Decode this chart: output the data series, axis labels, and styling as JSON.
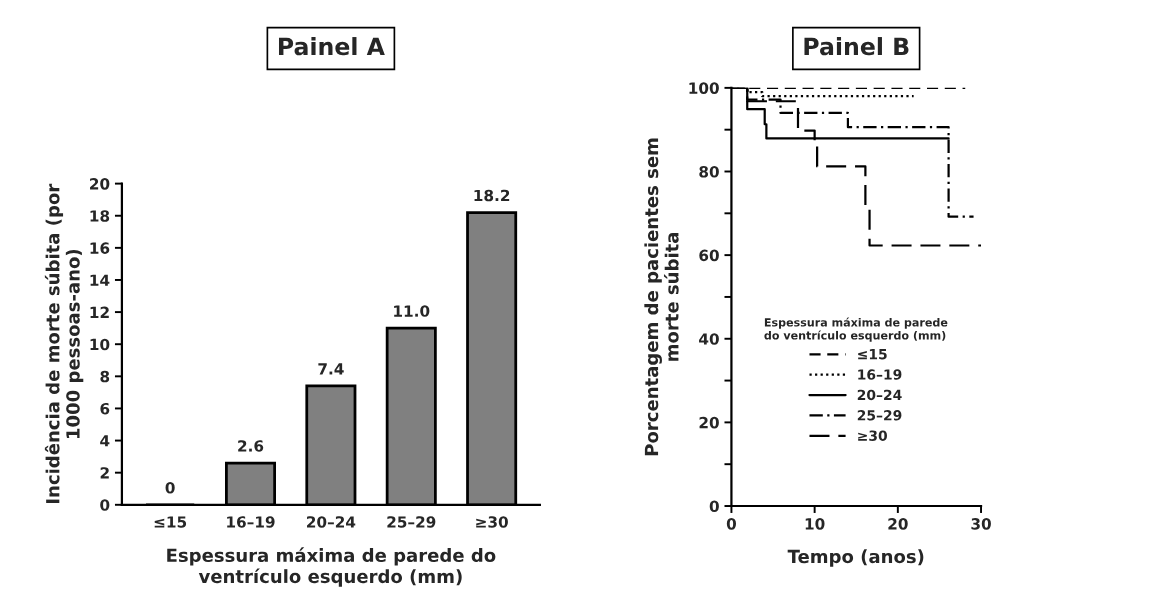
{
  "chart_data": [
    {
      "type": "bar",
      "title": "Painel A",
      "xlabel": "Espessura máxima de parede do\nventrículo esquerdo (mm)",
      "ylabel": "Incidência de morte súbita (por\n1000 pessoas-ano)",
      "categories": [
        "≤15",
        "16–19",
        "20–24",
        "25–29",
        "≥30"
      ],
      "values": [
        0,
        2.6,
        7.4,
        11.0,
        18.2
      ],
      "value_labels": [
        "0",
        "2.6",
        "7.4",
        "11.0",
        "18.2"
      ],
      "colors": [
        "#000000",
        "#808080",
        "#808080",
        "#808080",
        "#808080"
      ],
      "ylim": [
        0,
        20
      ],
      "yticks": [
        0,
        2,
        4,
        6,
        8,
        10,
        12,
        14,
        16,
        18,
        20
      ],
      "grid": false,
      "legend": false
    },
    {
      "type": "step",
      "title": "Painel B",
      "xlabel": "Tempo (anos)",
      "ylabel": "Porcentagem de pacientes sem\nmorte súbita",
      "legend_title": "Espessura máxima de parede\ndo ventrículo esquerdo (mm)",
      "xlim": [
        0,
        30
      ],
      "xticks": [
        0,
        10,
        20,
        30
      ],
      "ylim": [
        0,
        100
      ],
      "yticks": [
        0,
        {
          "value": 10,
          "label": null
        },
        20,
        {
          "value": 30,
          "label": null
        },
        40,
        {
          "value": 50,
          "label": null
        },
        60,
        {
          "value": 70,
          "label": null
        },
        80,
        {
          "value": 90,
          "label": null
        },
        100
      ],
      "grid": false,
      "legend": "left",
      "marker": "none",
      "series": [
        {
          "name": "≤15",
          "color": "#000000",
          "line_style": "dashed",
          "x": [
            0,
            28.1
          ],
          "values": [
            100,
            100
          ]
        },
        {
          "name": "16–19",
          "color": "#000000",
          "line_style": "dotted",
          "x": [
            0,
            1.9,
            3.7,
            21.9
          ],
          "values": [
            100,
            99,
            98,
            98
          ]
        },
        {
          "name": "20–24",
          "color": "#000000",
          "line_style": "solid",
          "x": [
            0,
            1.9,
            4.0,
            4.2,
            26.1
          ],
          "values": [
            100,
            94.9,
            91.3,
            87.9,
            87.9
          ]
        },
        {
          "name": "25–29",
          "color": "#000000",
          "line_style": "dashdot",
          "x": [
            0,
            1.9,
            5.9,
            14.0,
            26.1,
            29.1
          ],
          "values": [
            100,
            97.2,
            94.0,
            90.6,
            69.2,
            69.2
          ]
        },
        {
          "name": "≥30",
          "color": "#000000",
          "line_style": "longdash",
          "x": [
            0,
            1.9,
            8.0,
            10.0,
            10.3,
            16.1,
            16.6,
            30.0
          ],
          "values": [
            100,
            96.8,
            89.8,
            86.3,
            81.2,
            71.4,
            62.3,
            62.3
          ]
        }
      ]
    }
  ]
}
